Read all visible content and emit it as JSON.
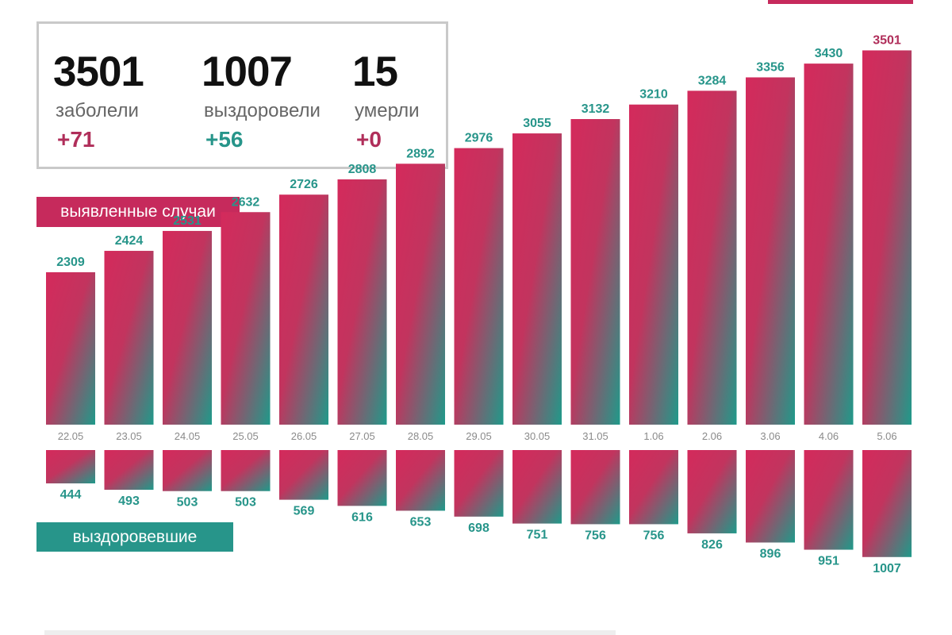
{
  "stats": [
    {
      "number": "3501",
      "label": "заболели",
      "delta": "+71",
      "delta_color": "#b02e5a"
    },
    {
      "number": "1007",
      "label": "выздоровели",
      "delta": "+56",
      "delta_color": "#27958a"
    },
    {
      "number": "15",
      "label": "умерли",
      "delta": "+0",
      "delta_color": "#b02e5a"
    }
  ],
  "legend": {
    "cases": "выявленные случаи",
    "recovered": "выздоровевшие"
  },
  "colors": {
    "cases_accent": "#c62a5c",
    "recovered_accent": "#27958a",
    "gradient_start": "#d42a5c",
    "gradient_end": "#1f9a8a"
  },
  "chart_data": {
    "type": "bar",
    "categories": [
      "22.05",
      "23.05",
      "24.05",
      "25.05",
      "26.05",
      "27.05",
      "28.05",
      "29.05",
      "30.05",
      "31.05",
      "1.06",
      "2.06",
      "3.06",
      "4.06",
      "5.06"
    ],
    "series": [
      {
        "name": "выявленные случаи",
        "values": [
          2309,
          2424,
          2531,
          2632,
          2726,
          2808,
          2892,
          2976,
          3055,
          3132,
          3210,
          3284,
          3356,
          3430,
          3501
        ]
      },
      {
        "name": "выздоровевшие",
        "values": [
          444,
          493,
          503,
          503,
          569,
          616,
          653,
          698,
          751,
          756,
          756,
          826,
          896,
          951,
          1007
        ]
      }
    ],
    "grid": false,
    "recovered_direction": "downward"
  }
}
